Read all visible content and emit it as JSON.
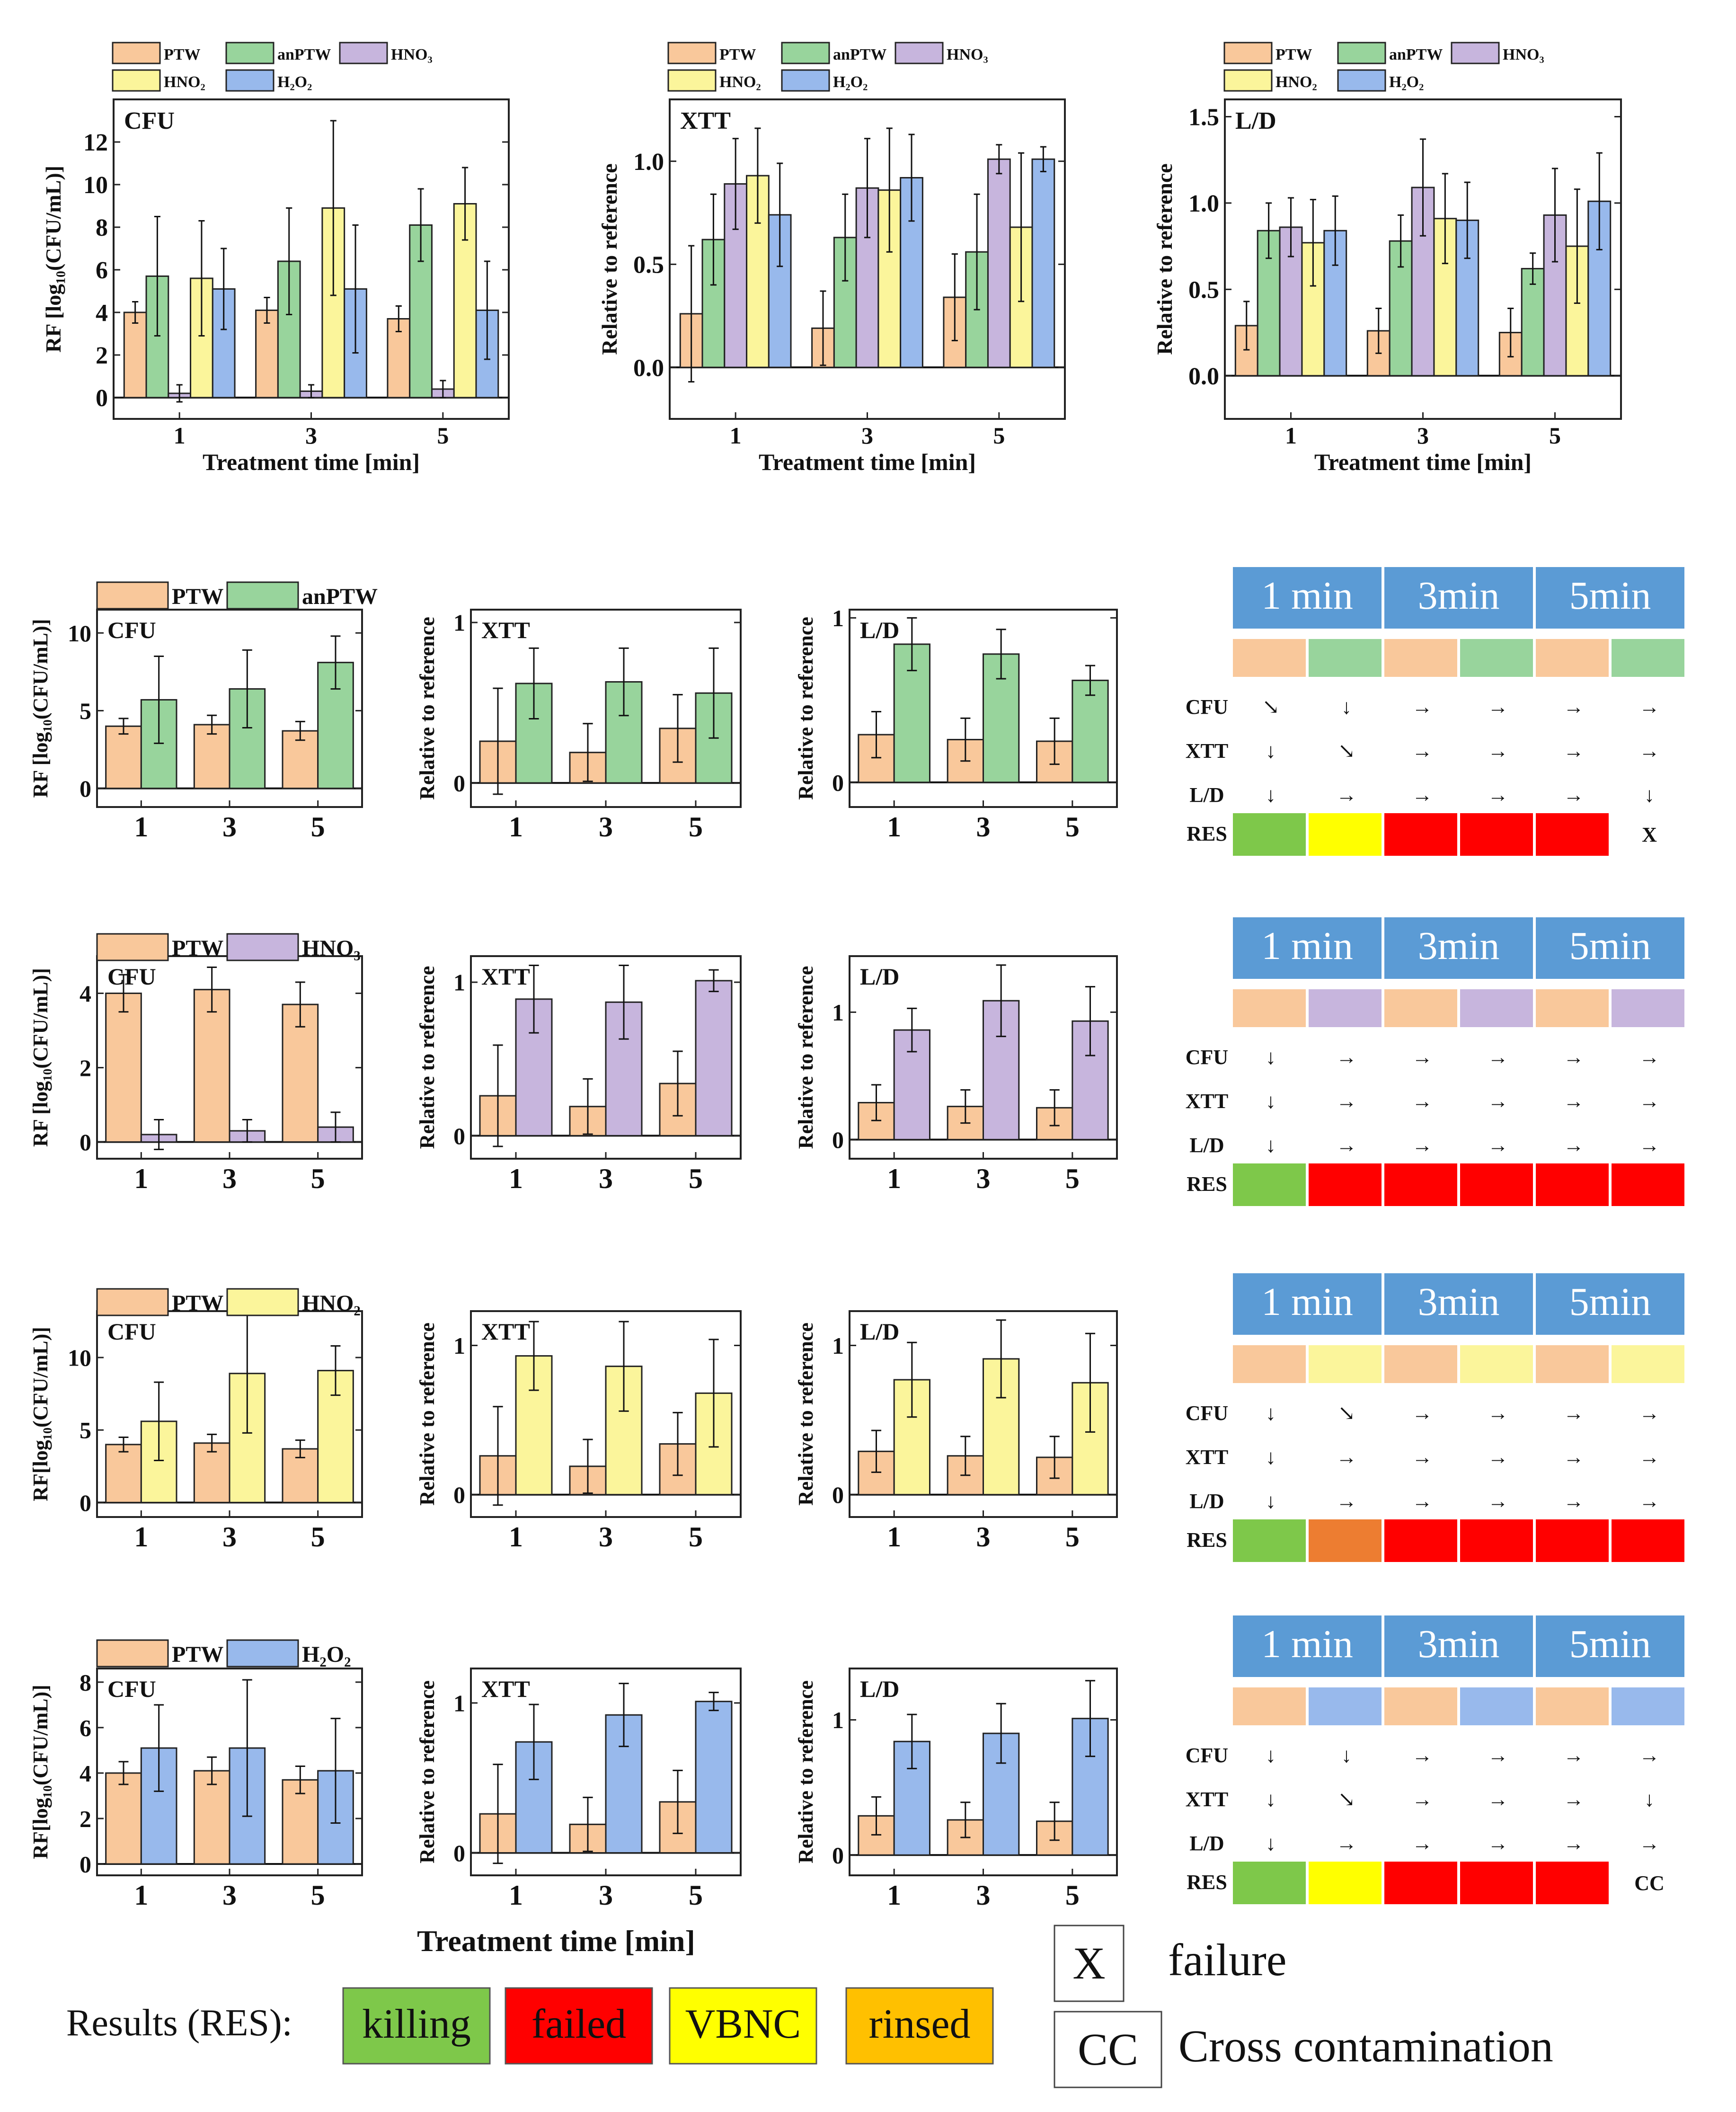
{
  "colors": {
    "PTW": "#f9c89b",
    "anPTW": "#98d49c",
    "HNO3": "#c7b5dd",
    "HNO2": "#fbf59b",
    "H2O2": "#98b9ec",
    "header_bg": "#5b9bd5",
    "res_killing": "#7ec84a",
    "res_failed": "#ff0000",
    "res_VBNC": "#ffff00",
    "res_rinsed": "#ffc000",
    "res_orange": "#ed7d31"
  },
  "top_legend": {
    "items": [
      {
        "key": "PTW",
        "label": "PTW"
      },
      {
        "key": "anPTW",
        "label": "anPTW"
      },
      {
        "key": "HNO3",
        "label": "HNO₃"
      },
      {
        "key": "HNO2",
        "label": "HNO₂"
      },
      {
        "key": "H2O2",
        "label": "H₂O₂"
      }
    ]
  },
  "axis_labels": {
    "rf": "RF [log₁₀(CFU/mL)]",
    "rf_nospace": "RF[log₁₀(CFU/mL)]",
    "rel": "Relative to reference",
    "x": "Treatment time [min]"
  },
  "chart_data": [
    {
      "id": "top-cfu",
      "type": "bar",
      "title": "CFU",
      "categories": [
        "1",
        "3",
        "5"
      ],
      "ylabel": "RF [log₁₀(CFU/mL)]",
      "xlabel": "Treatment time [min]",
      "ylim": [
        -1,
        14
      ],
      "yticks": [
        0,
        2,
        4,
        6,
        8,
        10,
        12
      ],
      "series": [
        {
          "name": "PTW",
          "key": "PTW",
          "values": [
            4.0,
            4.1,
            3.7
          ],
          "err": [
            0.5,
            0.6,
            0.6
          ]
        },
        {
          "name": "anPTW",
          "key": "anPTW",
          "values": [
            5.7,
            6.4,
            8.1
          ],
          "err": [
            2.8,
            2.5,
            1.7
          ]
        },
        {
          "name": "HNO₃",
          "key": "HNO3",
          "values": [
            0.2,
            0.3,
            0.4
          ],
          "err": [
            0.4,
            0.3,
            0.4
          ]
        },
        {
          "name": "HNO₂",
          "key": "HNO2",
          "values": [
            5.6,
            8.9,
            9.1
          ],
          "err": [
            2.7,
            4.1,
            1.7
          ]
        },
        {
          "name": "H₂O₂",
          "key": "H2O2",
          "values": [
            5.1,
            5.1,
            4.1
          ],
          "err": [
            1.9,
            3.0,
            2.3
          ]
        }
      ]
    },
    {
      "id": "top-xtt",
      "type": "bar",
      "title": "XTT",
      "categories": [
        "1",
        "3",
        "5"
      ],
      "ylabel": "Relative to reference",
      "xlabel": "Treatment time [min]",
      "ylim": [
        -0.25,
        1.3
      ],
      "yticks": [
        0.0,
        0.5,
        1.0
      ],
      "ytick_labels": [
        "0.0",
        "0.5",
        "1.0"
      ],
      "series": [
        {
          "name": "PTW",
          "key": "PTW",
          "values": [
            0.26,
            0.19,
            0.34
          ],
          "err": [
            0.33,
            0.18,
            0.21
          ]
        },
        {
          "name": "anPTW",
          "key": "anPTW",
          "values": [
            0.62,
            0.63,
            0.56
          ],
          "err": [
            0.22,
            0.21,
            0.28
          ]
        },
        {
          "name": "HNO₃",
          "key": "HNO3",
          "values": [
            0.89,
            0.87,
            1.01
          ],
          "err": [
            0.22,
            0.24,
            0.07
          ]
        },
        {
          "name": "HNO₂",
          "key": "HNO2",
          "values": [
            0.93,
            0.86,
            0.68
          ],
          "err": [
            0.23,
            0.3,
            0.36
          ]
        },
        {
          "name": "H₂O₂",
          "key": "H2O2",
          "values": [
            0.74,
            0.92,
            1.01
          ],
          "err": [
            0.25,
            0.21,
            0.06
          ]
        }
      ]
    },
    {
      "id": "top-ld",
      "type": "bar",
      "title": "L/D",
      "categories": [
        "1",
        "3",
        "5"
      ],
      "ylabel": "Relative to reference",
      "xlabel": "Treatment time [min]",
      "ylim": [
        -0.25,
        1.6
      ],
      "yticks": [
        0.0,
        0.5,
        1.0,
        1.5
      ],
      "ytick_labels": [
        "0.0",
        "0.5",
        "1.0",
        "1.5"
      ],
      "series": [
        {
          "name": "PTW",
          "key": "PTW",
          "values": [
            0.29,
            0.26,
            0.25
          ],
          "err": [
            0.14,
            0.13,
            0.14
          ]
        },
        {
          "name": "anPTW",
          "key": "anPTW",
          "values": [
            0.84,
            0.78,
            0.62
          ],
          "err": [
            0.16,
            0.15,
            0.09
          ]
        },
        {
          "name": "HNO₃",
          "key": "HNO3",
          "values": [
            0.86,
            1.09,
            0.93
          ],
          "err": [
            0.17,
            0.28,
            0.27
          ]
        },
        {
          "name": "HNO₂",
          "key": "HNO2",
          "values": [
            0.77,
            0.91,
            0.75
          ],
          "err": [
            0.25,
            0.26,
            0.33
          ]
        },
        {
          "name": "H₂O₂",
          "key": "H2O2",
          "values": [
            0.84,
            0.9,
            1.01
          ],
          "err": [
            0.2,
            0.22,
            0.28
          ]
        }
      ]
    },
    {
      "id": "r1-cfu",
      "type": "bar",
      "title": "CFU",
      "categories": [
        "1",
        "3",
        "5"
      ],
      "ylabel": "RF [log₁₀(CFU/mL)]",
      "ylim": [
        -1.2,
        11.5
      ],
      "yticks": [
        0,
        5,
        10
      ],
      "series": [
        {
          "name": "PTW",
          "key": "PTW",
          "values": [
            4.0,
            4.1,
            3.7
          ],
          "err": [
            0.5,
            0.6,
            0.6
          ]
        },
        {
          "name": "anPTW",
          "key": "anPTW",
          "values": [
            5.7,
            6.4,
            8.1
          ],
          "err": [
            2.8,
            2.5,
            1.7
          ]
        }
      ]
    },
    {
      "id": "r1-xtt",
      "type": "bar",
      "title": "XTT",
      "categories": [
        "1",
        "3",
        "5"
      ],
      "ylabel": "Relative to reference",
      "ylim": [
        -0.15,
        1.08
      ],
      "yticks": [
        0,
        1
      ],
      "series": [
        {
          "name": "PTW",
          "key": "PTW",
          "values": [
            0.26,
            0.19,
            0.34
          ],
          "err": [
            0.33,
            0.18,
            0.21
          ]
        },
        {
          "name": "anPTW",
          "key": "anPTW",
          "values": [
            0.62,
            0.63,
            0.56
          ],
          "err": [
            0.22,
            0.21,
            0.28
          ]
        }
      ]
    },
    {
      "id": "r1-ld",
      "type": "bar",
      "title": "L/D",
      "categories": [
        "1",
        "3",
        "5"
      ],
      "ylabel": "Relative to reference",
      "ylim": [
        -0.15,
        1.05
      ],
      "yticks": [
        0,
        1
      ],
      "series": [
        {
          "name": "PTW",
          "key": "PTW",
          "values": [
            0.29,
            0.26,
            0.25
          ],
          "err": [
            0.14,
            0.13,
            0.14
          ]
        },
        {
          "name": "anPTW",
          "key": "anPTW",
          "values": [
            0.84,
            0.78,
            0.62
          ],
          "err": [
            0.16,
            0.15,
            0.09
          ]
        }
      ]
    },
    {
      "id": "r2-cfu",
      "type": "bar",
      "title": "CFU",
      "categories": [
        "1",
        "3",
        "5"
      ],
      "ylabel": "RF [log₁₀(CFU/mL)]",
      "ylim": [
        -0.45,
        5.0
      ],
      "yticks": [
        0,
        2,
        4
      ],
      "series": [
        {
          "name": "PTW",
          "key": "PTW",
          "values": [
            4.0,
            4.1,
            3.7
          ],
          "err": [
            0.5,
            0.6,
            0.6
          ]
        },
        {
          "name": "HNO₃",
          "key": "HNO3",
          "values": [
            0.2,
            0.3,
            0.4
          ],
          "err": [
            0.4,
            0.3,
            0.4
          ]
        }
      ]
    },
    {
      "id": "r2-xtt",
      "type": "bar",
      "title": "XTT",
      "categories": [
        "1",
        "3",
        "5"
      ],
      "ylabel": "Relative to reference",
      "ylim": [
        -0.15,
        1.17
      ],
      "yticks": [
        0,
        1
      ],
      "series": [
        {
          "name": "PTW",
          "key": "PTW",
          "values": [
            0.26,
            0.19,
            0.34
          ],
          "err": [
            0.33,
            0.18,
            0.21
          ]
        },
        {
          "name": "HNO₃",
          "key": "HNO3",
          "values": [
            0.89,
            0.87,
            1.01
          ],
          "err": [
            0.22,
            0.24,
            0.07
          ]
        }
      ]
    },
    {
      "id": "r2-ld",
      "type": "bar",
      "title": "L/D",
      "categories": [
        "1",
        "3",
        "5"
      ],
      "ylabel": "Relative to reference",
      "ylim": [
        -0.15,
        1.44
      ],
      "yticks": [
        0,
        1
      ],
      "series": [
        {
          "name": "PTW",
          "key": "PTW",
          "values": [
            0.29,
            0.26,
            0.25
          ],
          "err": [
            0.14,
            0.13,
            0.14
          ]
        },
        {
          "name": "HNO₃",
          "key": "HNO3",
          "values": [
            0.86,
            1.09,
            0.93
          ],
          "err": [
            0.17,
            0.28,
            0.27
          ]
        }
      ]
    },
    {
      "id": "r3-cfu",
      "type": "bar",
      "title": "CFU",
      "categories": [
        "1",
        "3",
        "5"
      ],
      "ylabel": "RF[log₁₀(CFU/mL)]",
      "ylim": [
        -1.0,
        13.2
      ],
      "yticks": [
        0,
        5,
        10
      ],
      "series": [
        {
          "name": "PTW",
          "key": "PTW",
          "values": [
            4.0,
            4.1,
            3.7
          ],
          "err": [
            0.5,
            0.6,
            0.6
          ]
        },
        {
          "name": "HNO₂",
          "key": "HNO2",
          "values": [
            5.6,
            8.9,
            9.1
          ],
          "err": [
            2.7,
            4.1,
            1.7
          ]
        }
      ]
    },
    {
      "id": "r3-xtt",
      "type": "bar",
      "title": "XTT",
      "categories": [
        "1",
        "3",
        "5"
      ],
      "ylabel": "Relative to reference",
      "ylim": [
        -0.15,
        1.23
      ],
      "yticks": [
        0,
        1
      ],
      "series": [
        {
          "name": "PTW",
          "key": "PTW",
          "values": [
            0.26,
            0.19,
            0.34
          ],
          "err": [
            0.33,
            0.18,
            0.21
          ]
        },
        {
          "name": "HNO₂",
          "key": "HNO2",
          "values": [
            0.93,
            0.86,
            0.68
          ],
          "err": [
            0.23,
            0.3,
            0.36
          ]
        }
      ]
    },
    {
      "id": "r3-ld",
      "type": "bar",
      "title": "L/D",
      "categories": [
        "1",
        "3",
        "5"
      ],
      "ylabel": "Relative to reference",
      "ylim": [
        -0.15,
        1.23
      ],
      "yticks": [
        0,
        1
      ],
      "series": [
        {
          "name": "PTW",
          "key": "PTW",
          "values": [
            0.29,
            0.26,
            0.25
          ],
          "err": [
            0.14,
            0.13,
            0.14
          ]
        },
        {
          "name": "HNO₂",
          "key": "HNO2",
          "values": [
            0.77,
            0.91,
            0.75
          ],
          "err": [
            0.25,
            0.26,
            0.33
          ]
        }
      ]
    },
    {
      "id": "r4-cfu",
      "type": "bar",
      "title": "CFU",
      "categories": [
        "1",
        "3",
        "5"
      ],
      "ylabel": "RF[log₁₀(CFU/mL)]",
      "ylim": [
        -0.5,
        8.6
      ],
      "yticks": [
        0,
        2,
        4,
        6,
        8
      ],
      "series": [
        {
          "name": "PTW",
          "key": "PTW",
          "values": [
            4.0,
            4.1,
            3.7
          ],
          "err": [
            0.5,
            0.6,
            0.6
          ]
        },
        {
          "name": "H₂O₂",
          "key": "H2O2",
          "values": [
            5.1,
            5.1,
            4.1
          ],
          "err": [
            1.9,
            3.0,
            2.3
          ]
        }
      ]
    },
    {
      "id": "r4-xtt",
      "type": "bar",
      "title": "XTT",
      "categories": [
        "1",
        "3",
        "5"
      ],
      "ylabel": "Relative to reference",
      "ylim": [
        -0.15,
        1.23
      ],
      "yticks": [
        0,
        1
      ],
      "series": [
        {
          "name": "PTW",
          "key": "PTW",
          "values": [
            0.26,
            0.19,
            0.34
          ],
          "err": [
            0.33,
            0.18,
            0.21
          ]
        },
        {
          "name": "H₂O₂",
          "key": "H2O2",
          "values": [
            0.74,
            0.92,
            1.01
          ],
          "err": [
            0.25,
            0.21,
            0.06
          ]
        }
      ]
    },
    {
      "id": "r4-ld",
      "type": "bar",
      "title": "L/D",
      "categories": [
        "1",
        "3",
        "5"
      ],
      "ylabel": "Relative to reference",
      "ylim": [
        -0.15,
        1.38
      ],
      "yticks": [
        0,
        1
      ],
      "series": [
        {
          "name": "PTW",
          "key": "PTW",
          "values": [
            0.29,
            0.26,
            0.25
          ],
          "err": [
            0.14,
            0.13,
            0.14
          ]
        },
        {
          "name": "H₂O₂",
          "key": "H2O2",
          "values": [
            0.84,
            0.9,
            1.01
          ],
          "err": [
            0.2,
            0.22,
            0.28
          ]
        }
      ]
    }
  ],
  "summary_tables": [
    {
      "id": "t-anptw",
      "headers": [
        "1 min",
        "3min",
        "5min"
      ],
      "swatches": [
        "PTW",
        "anPTW",
        "PTW",
        "anPTW",
        "PTW",
        "anPTW"
      ],
      "rows": [
        {
          "label": "CFU",
          "cells": [
            "↘",
            "↓",
            "→",
            "→",
            "→",
            "→"
          ]
        },
        {
          "label": "XTT",
          "cells": [
            "↓",
            "↘",
            "→",
            "→",
            "→",
            "→"
          ]
        },
        {
          "label": "L/D",
          "cells": [
            "↓",
            "→",
            "→",
            "→",
            "→",
            "↓"
          ]
        }
      ],
      "res_label": "RES",
      "res": [
        "res_killing",
        "res_VBNC",
        "res_failed",
        "res_failed",
        "res_failed",
        "X"
      ]
    },
    {
      "id": "t-hno3",
      "headers": [
        "1 min",
        "3min",
        "5min"
      ],
      "swatches": [
        "PTW",
        "HNO3",
        "PTW",
        "HNO3",
        "PTW",
        "HNO3"
      ],
      "rows": [
        {
          "label": "CFU",
          "cells": [
            "↓",
            "→",
            "→",
            "→",
            "→",
            "→"
          ]
        },
        {
          "label": "XTT",
          "cells": [
            "↓",
            "→",
            "→",
            "→",
            "→",
            "→"
          ]
        },
        {
          "label": "L/D",
          "cells": [
            "↓",
            "→",
            "→",
            "→",
            "→",
            "→"
          ]
        }
      ],
      "res_label": "RES",
      "res": [
        "res_killing",
        "res_failed",
        "res_failed",
        "res_failed",
        "res_failed",
        "res_failed"
      ]
    },
    {
      "id": "t-hno2",
      "headers": [
        "1 min",
        "3min",
        "5min"
      ],
      "swatches": [
        "PTW",
        "HNO2",
        "PTW",
        "HNO2",
        "PTW",
        "HNO2"
      ],
      "rows": [
        {
          "label": "CFU",
          "cells": [
            "↓",
            "↘",
            "→",
            "→",
            "→",
            "→"
          ]
        },
        {
          "label": "XTT",
          "cells": [
            "↓",
            "→",
            "→",
            "→",
            "→",
            "→"
          ]
        },
        {
          "label": "L/D",
          "cells": [
            "↓",
            "→",
            "→",
            "→",
            "→",
            "→"
          ]
        }
      ],
      "res_label": "RES",
      "res": [
        "res_killing",
        "res_orange",
        "res_failed",
        "res_failed",
        "res_failed",
        "res_failed"
      ]
    },
    {
      "id": "t-h2o2",
      "headers": [
        "1 min",
        "3min",
        "5min"
      ],
      "swatches": [
        "PTW",
        "H2O2",
        "PTW",
        "H2O2",
        "PTW",
        "H2O2"
      ],
      "rows": [
        {
          "label": "CFU",
          "cells": [
            "↓",
            "↓",
            "→",
            "→",
            "→",
            "→"
          ]
        },
        {
          "label": "XTT",
          "cells": [
            "↓",
            "↘",
            "→",
            "→",
            "→",
            "↓"
          ]
        },
        {
          "label": "L/D",
          "cells": [
            "↓",
            "→",
            "→",
            "→",
            "→",
            "→"
          ]
        }
      ],
      "res_label": "RES",
      "res": [
        "res_killing",
        "res_VBNC",
        "res_failed",
        "res_failed",
        "res_failed",
        "CC"
      ]
    }
  ],
  "bottom": {
    "xlabel": "Treatment time [min]",
    "results_label": "Results (RES):",
    "results": [
      {
        "key": "res_killing",
        "label": "killing"
      },
      {
        "key": "res_failed",
        "label": "failed"
      },
      {
        "key": "res_VBNC",
        "label": "VBNC"
      },
      {
        "key": "res_rinsed",
        "label": "rinsed"
      }
    ],
    "notes": [
      {
        "code": "X",
        "text": "failure"
      },
      {
        "code": "CC",
        "text": "Cross contamination"
      }
    ]
  }
}
